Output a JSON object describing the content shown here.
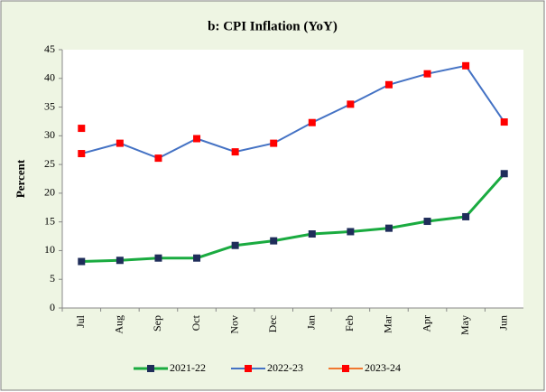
{
  "chart_data": {
    "type": "line",
    "title": "b: CPI Inflation (YoY)",
    "y_label": "Percent",
    "categories": [
      "Jul",
      "Aug",
      "Sep",
      "Oct",
      "Nov",
      "Dec",
      "Jan",
      "Feb",
      "Mar",
      "Apr",
      "May",
      "Jun"
    ],
    "series": [
      {
        "name": "2021-22",
        "color": "#1aab40",
        "marker_color": "#1f2d5a",
        "values": [
          8.1,
          8.3,
          8.7,
          8.7,
          10.9,
          11.7,
          12.9,
          13.3,
          13.9,
          15.1,
          15.9,
          23.4
        ]
      },
      {
        "name": "2022-23",
        "color": "#4472c4",
        "marker_color": "#ff0000",
        "values": [
          26.9,
          28.7,
          26.1,
          29.5,
          27.2,
          28.7,
          32.3,
          35.5,
          38.9,
          40.8,
          42.2,
          32.4
        ]
      },
      {
        "name": "2023-24",
        "color": "#f07830",
        "marker_color": "#ff0000",
        "values": [
          31.3,
          null,
          null,
          null,
          null,
          null,
          null,
          null,
          null,
          null,
          null,
          null
        ]
      }
    ],
    "ylim": [
      0,
      45
    ],
    "yticks": [
      0,
      5,
      10,
      15,
      20,
      25,
      30,
      35,
      40,
      45
    ],
    "grid": false,
    "legend": "bottom"
  }
}
